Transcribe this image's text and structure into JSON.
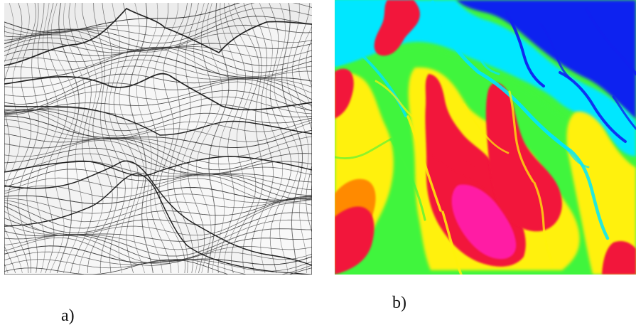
{
  "figure": {
    "panel_a": {
      "caption": "a)",
      "colors": {
        "background": "#ececec",
        "surface": "#f4f4f4",
        "mesh": "#303030",
        "shadow": "#1d1d1d"
      }
    },
    "panel_b": {
      "caption": "b)",
      "colors": {
        "blue": "#1020f0",
        "cyan": "#00e7ff",
        "green": "#41f53d",
        "yellow": "#fff10a",
        "orange": "#ff8a00",
        "red": "#f2173b",
        "magenta": "#ff1aa4"
      }
    }
  }
}
